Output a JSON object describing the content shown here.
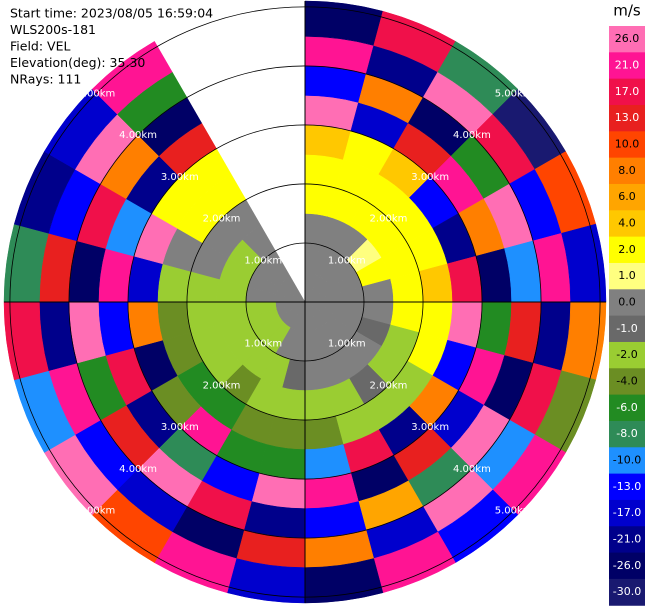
{
  "chart_data": {
    "type": "ppi",
    "info": [
      "Start time: 2023/08/05 16:59:04",
      "WLS200s-181",
      "Field: VEL",
      "Elevation(deg): 35.30",
      "NRays: 111"
    ],
    "azimuths": [
      0,
      15,
      30,
      45,
      60,
      75,
      90,
      105,
      120,
      135,
      150,
      165,
      180,
      195,
      210,
      225,
      240,
      255,
      270,
      285,
      300,
      315
    ],
    "azimuth_width": 15,
    "gates_km": [
      0,
      0.5,
      1,
      1.5,
      2,
      2.5,
      3,
      3.5,
      4,
      4.5,
      5.1
    ],
    "rlim": [
      0,
      5.1
    ],
    "rticks": [
      {
        "value": 1,
        "label": "1.00km"
      },
      {
        "value": 2,
        "label": "2.00km"
      },
      {
        "value": 3,
        "label": "3.00km"
      },
      {
        "value": 4,
        "label": "4.00km"
      },
      {
        "value": 5,
        "label": "5.00km"
      }
    ],
    "field": [
      [
        0,
        0,
        0,
        2,
        2,
        4,
        26,
        -13,
        21,
        -26
      ],
      [
        0,
        0,
        0,
        2,
        2,
        2,
        -17,
        8,
        -21,
        17
      ],
      [
        0,
        0,
        0,
        2,
        2,
        4,
        13,
        -26,
        26,
        -8
      ],
      [
        0,
        0,
        1,
        2,
        2,
        -13,
        21,
        -6,
        17,
        -30
      ],
      [
        0,
        0,
        2,
        2,
        2,
        -21,
        8,
        26,
        -13,
        10
      ],
      [
        0,
        0,
        0,
        2,
        4,
        17,
        -26,
        -10,
        21,
        -17
      ],
      [
        0,
        0,
        0,
        2,
        2,
        26,
        -6,
        13,
        -21,
        8
      ],
      [
        0,
        0,
        -1,
        -2,
        2,
        -13,
        21,
        -26,
        17,
        -4
      ],
      [
        0,
        0,
        0,
        -2,
        -2,
        8,
        -17,
        26,
        -10,
        21
      ],
      [
        0,
        0,
        0,
        -1,
        -2,
        -21,
        13,
        -8,
        26,
        -13
      ],
      [
        0,
        0,
        0,
        -2,
        -2,
        17,
        -26,
        6,
        -17,
        21
      ],
      [
        0,
        0,
        0,
        -2,
        -4,
        -10,
        21,
        -13,
        8,
        -26
      ],
      [
        0,
        0,
        -1,
        -2,
        -4,
        -6,
        26,
        -21,
        13,
        -17
      ],
      [
        0,
        0,
        -2,
        -2,
        -4,
        -6,
        -13,
        17,
        -26,
        21
      ],
      [
        0,
        -2,
        -2,
        -4,
        -6,
        21,
        -8,
        26,
        -17,
        10
      ],
      [
        0,
        -2,
        -2,
        -2,
        -6,
        -4,
        -21,
        13,
        -13,
        26
      ],
      [
        0,
        -2,
        -2,
        -2,
        -4,
        -26,
        17,
        -6,
        21,
        -10
      ],
      [
        0,
        -2,
        -2,
        -2,
        -4,
        8,
        -13,
        26,
        -21,
        17
      ],
      [
        0,
        0,
        -2,
        -2,
        -2,
        -17,
        21,
        -26,
        13,
        -8
      ],
      [
        0,
        0,
        -2,
        0,
        0,
        26,
        -10,
        17,
        -13,
        -21
      ],
      [
        0,
        0,
        -2,
        0,
        2,
        2,
        -21,
        8,
        26,
        -17
      ],
      [
        0,
        0,
        0,
        0,
        2,
        2,
        13,
        -26,
        -6,
        21
      ]
    ],
    "colorbar": {
      "title": "m/s",
      "ticks": [
        {
          "value": 26,
          "label": "26.0"
        },
        {
          "value": 21,
          "label": "21.0"
        },
        {
          "value": 17,
          "label": "17.0"
        },
        {
          "value": 13,
          "label": "13.0"
        },
        {
          "value": 10,
          "label": "10.0"
        },
        {
          "value": 8,
          "label": "8.0"
        },
        {
          "value": 6,
          "label": "6.0"
        },
        {
          "value": 4,
          "label": "4.0"
        },
        {
          "value": 2,
          "label": "2.0"
        },
        {
          "value": 1,
          "label": "1.0"
        },
        {
          "value": 0,
          "label": "0.0"
        },
        {
          "value": -1,
          "label": "-1.0"
        },
        {
          "value": -2,
          "label": "-2.0"
        },
        {
          "value": -4,
          "label": "-4.0"
        },
        {
          "value": -6,
          "label": "-6.0"
        },
        {
          "value": -8,
          "label": "-8.0"
        },
        {
          "value": -10,
          "label": "-10.0"
        },
        {
          "value": -13,
          "label": "-13.0"
        },
        {
          "value": -17,
          "label": "-17.0"
        },
        {
          "value": -21,
          "label": "-21.0"
        },
        {
          "value": -26,
          "label": "-26.0"
        },
        {
          "value": -30,
          "label": "-30.0"
        }
      ],
      "colors": [
        "#ff6eb4",
        "#ff1493",
        "#f0104a",
        "#e8201f",
        "#ff4500",
        "#ff7f00",
        "#ffa500",
        "#ffc800",
        "#ffff00",
        "#ffff80",
        "#808080",
        "#696969",
        "#9acd32",
        "#6b8e23",
        "#228b22",
        "#2e8b57",
        "#1e90ff",
        "#0000ff",
        "#0000cd",
        "#00008b",
        "#000066",
        "#191970"
      ]
    }
  }
}
